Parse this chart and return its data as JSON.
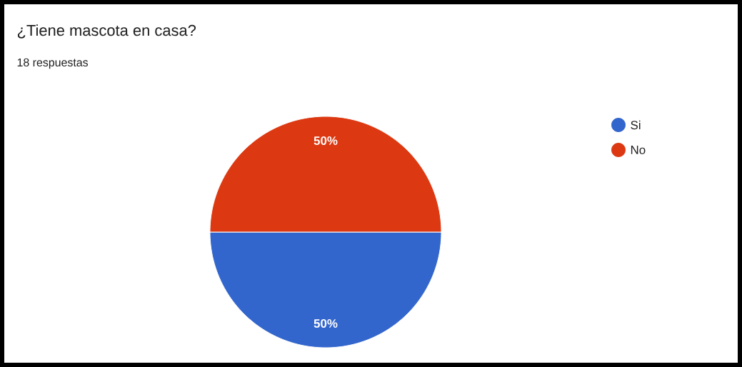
{
  "chart_data": {
    "type": "pie",
    "title": "¿Tiene mascota en casa?",
    "subtitle": "18 respuestas",
    "categories": [
      "Si",
      "No"
    ],
    "values": [
      50,
      50
    ],
    "colors": [
      "#3366cc",
      "#dc3912"
    ],
    "value_labels": [
      "50%",
      "50%"
    ],
    "legend": "right"
  }
}
